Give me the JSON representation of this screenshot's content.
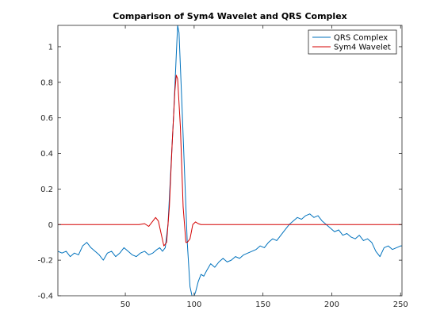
{
  "chart_data": {
    "type": "line",
    "title": "Comparison of Sym4 Wavelet and QRS Complex",
    "xlabel": "",
    "ylabel": "",
    "xlim": [
      1,
      251
    ],
    "ylim": [
      -0.4,
      1.12
    ],
    "xticks": [
      50,
      100,
      150,
      200,
      250
    ],
    "yticks": [
      -0.4,
      -0.2,
      0,
      0.2,
      0.4,
      0.6,
      0.8,
      1
    ],
    "grid": false,
    "legend_position": "top-right",
    "series": [
      {
        "name": "QRS Complex",
        "color": "#0072bd",
        "points": [
          [
            1,
            -0.15
          ],
          [
            4,
            -0.16
          ],
          [
            7,
            -0.15
          ],
          [
            10,
            -0.18
          ],
          [
            13,
            -0.16
          ],
          [
            16,
            -0.17
          ],
          [
            19,
            -0.12
          ],
          [
            22,
            -0.1
          ],
          [
            25,
            -0.13
          ],
          [
            28,
            -0.15
          ],
          [
            31,
            -0.17
          ],
          [
            34,
            -0.2
          ],
          [
            37,
            -0.16
          ],
          [
            40,
            -0.15
          ],
          [
            43,
            -0.18
          ],
          [
            46,
            -0.16
          ],
          [
            49,
            -0.13
          ],
          [
            52,
            -0.15
          ],
          [
            55,
            -0.17
          ],
          [
            58,
            -0.18
          ],
          [
            61,
            -0.16
          ],
          [
            64,
            -0.15
          ],
          [
            67,
            -0.17
          ],
          [
            70,
            -0.16
          ],
          [
            73,
            -0.14
          ],
          [
            75,
            -0.13
          ],
          [
            77,
            -0.15
          ],
          [
            79,
            -0.13
          ],
          [
            81,
            0.0
          ],
          [
            83,
            0.3
          ],
          [
            85,
            0.6
          ],
          [
            87,
            0.95
          ],
          [
            88,
            1.12
          ],
          [
            89,
            1.08
          ],
          [
            91,
            0.7
          ],
          [
            93,
            0.3
          ],
          [
            95,
            -0.1
          ],
          [
            97,
            -0.35
          ],
          [
            99,
            -0.42
          ],
          [
            101,
            -0.38
          ],
          [
            103,
            -0.32
          ],
          [
            105,
            -0.28
          ],
          [
            107,
            -0.29
          ],
          [
            109,
            -0.26
          ],
          [
            112,
            -0.22
          ],
          [
            115,
            -0.24
          ],
          [
            118,
            -0.21
          ],
          [
            121,
            -0.19
          ],
          [
            124,
            -0.21
          ],
          [
            127,
            -0.2
          ],
          [
            130,
            -0.18
          ],
          [
            133,
            -0.19
          ],
          [
            136,
            -0.17
          ],
          [
            139,
            -0.16
          ],
          [
            142,
            -0.15
          ],
          [
            145,
            -0.14
          ],
          [
            148,
            -0.12
          ],
          [
            151,
            -0.13
          ],
          [
            154,
            -0.1
          ],
          [
            157,
            -0.08
          ],
          [
            160,
            -0.09
          ],
          [
            163,
            -0.06
          ],
          [
            166,
            -0.03
          ],
          [
            169,
            0.0
          ],
          [
            172,
            0.02
          ],
          [
            175,
            0.04
          ],
          [
            178,
            0.03
          ],
          [
            181,
            0.05
          ],
          [
            184,
            0.06
          ],
          [
            187,
            0.04
          ],
          [
            190,
            0.05
          ],
          [
            193,
            0.02
          ],
          [
            196,
            0.0
          ],
          [
            199,
            -0.02
          ],
          [
            202,
            -0.04
          ],
          [
            205,
            -0.03
          ],
          [
            208,
            -0.06
          ],
          [
            211,
            -0.05
          ],
          [
            214,
            -0.07
          ],
          [
            217,
            -0.08
          ],
          [
            220,
            -0.06
          ],
          [
            223,
            -0.09
          ],
          [
            226,
            -0.08
          ],
          [
            229,
            -0.1
          ],
          [
            232,
            -0.15
          ],
          [
            235,
            -0.18
          ],
          [
            238,
            -0.13
          ],
          [
            241,
            -0.12
          ],
          [
            244,
            -0.14
          ],
          [
            247,
            -0.13
          ],
          [
            250,
            -0.12
          ],
          [
            251,
            -0.12
          ]
        ]
      },
      {
        "name": "Sym4 Wavelet",
        "color": "#d40000",
        "points": [
          [
            1,
            0
          ],
          [
            60,
            0
          ],
          [
            64,
            0.005
          ],
          [
            67,
            -0.01
          ],
          [
            70,
            0.02
          ],
          [
            72,
            0.04
          ],
          [
            74,
            0.02
          ],
          [
            76,
            -0.05
          ],
          [
            78,
            -0.12
          ],
          [
            80,
            -0.1
          ],
          [
            82,
            0.1
          ],
          [
            84,
            0.45
          ],
          [
            86,
            0.75
          ],
          [
            87,
            0.84
          ],
          [
            88,
            0.82
          ],
          [
            90,
            0.55
          ],
          [
            92,
            0.1
          ],
          [
            94,
            -0.1
          ],
          [
            95,
            -0.1
          ],
          [
            97,
            -0.08
          ],
          [
            99,
            0.0
          ],
          [
            101,
            0.015
          ],
          [
            103,
            0.005
          ],
          [
            105,
            0
          ],
          [
            251,
            0
          ]
        ]
      }
    ]
  }
}
